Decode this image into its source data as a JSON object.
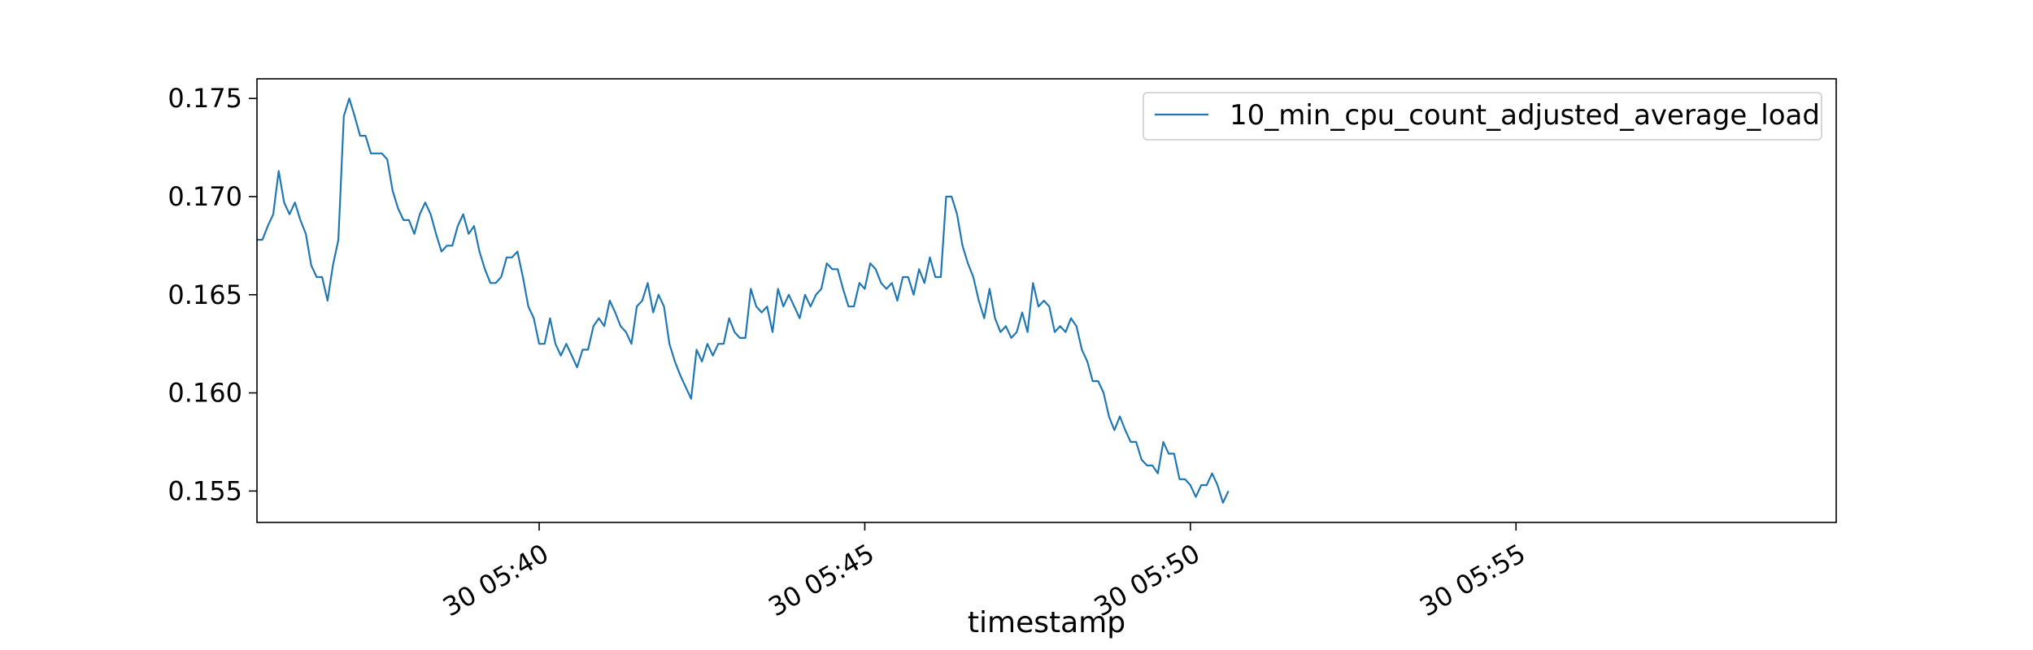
{
  "chart_data": {
    "type": "line",
    "title": "",
    "xlabel": "timestamp",
    "ylabel": "",
    "x_start": "30 05:35:40",
    "x_step_seconds": 5,
    "xlim": [
      "30 05:35:40",
      "30 05:59:55"
    ],
    "x_ticks": [
      "30 05:40",
      "30 05:45",
      "30 05:50",
      "30 05:55"
    ],
    "ylim": [
      0.1534,
      0.176
    ],
    "y_ticks": [
      0.155,
      0.16,
      0.165,
      0.17,
      0.175
    ],
    "y_tick_labels": [
      "0.155",
      "0.160",
      "0.165",
      "0.170",
      "0.175"
    ],
    "grid": false,
    "legend_position": "top-right",
    "series": [
      {
        "name": "10_min_cpu_count_adjusted_average_load",
        "color": "#1f77b4",
        "values": [
          0.1678,
          0.1678,
          0.1685,
          0.1691,
          0.1713,
          0.1697,
          0.1691,
          0.1697,
          0.1688,
          0.1681,
          0.1665,
          0.1659,
          0.1659,
          0.1647,
          0.1665,
          0.1678,
          0.1741,
          0.175,
          0.1741,
          0.1731,
          0.1731,
          0.1722,
          0.1722,
          0.1722,
          0.1719,
          0.1703,
          0.1694,
          0.1688,
          0.1688,
          0.1681,
          0.1691,
          0.1697,
          0.1691,
          0.1681,
          0.1672,
          0.1675,
          0.1675,
          0.1685,
          0.1691,
          0.1681,
          0.1685,
          0.1672,
          0.1663,
          0.1656,
          0.1656,
          0.1659,
          0.1669,
          0.1669,
          0.1672,
          0.1659,
          0.1644,
          0.1638,
          0.1625,
          0.1625,
          0.1638,
          0.1625,
          0.1619,
          0.1625,
          0.1619,
          0.1613,
          0.1622,
          0.1622,
          0.1634,
          0.1638,
          0.1634,
          0.1647,
          0.1641,
          0.1634,
          0.1631,
          0.1625,
          0.1644,
          0.1647,
          0.1656,
          0.1641,
          0.165,
          0.1644,
          0.1625,
          0.1616,
          0.1609,
          0.1603,
          0.1597,
          0.1622,
          0.1616,
          0.1625,
          0.1619,
          0.1625,
          0.1625,
          0.1638,
          0.1631,
          0.1628,
          0.1628,
          0.1653,
          0.1644,
          0.1641,
          0.1644,
          0.1631,
          0.1653,
          0.1644,
          0.165,
          0.1644,
          0.1638,
          0.165,
          0.1644,
          0.165,
          0.1653,
          0.1666,
          0.1663,
          0.1663,
          0.1653,
          0.1644,
          0.1644,
          0.1656,
          0.1653,
          0.1666,
          0.1663,
          0.1656,
          0.1653,
          0.1656,
          0.1647,
          0.1659,
          0.1659,
          0.165,
          0.1663,
          0.1656,
          0.1669,
          0.1659,
          0.1659,
          0.17,
          0.17,
          0.1691,
          0.1675,
          0.1666,
          0.1659,
          0.1647,
          0.1638,
          0.1653,
          0.1638,
          0.1631,
          0.1634,
          0.1628,
          0.1631,
          0.1641,
          0.1631,
          0.1656,
          0.1644,
          0.1647,
          0.1644,
          0.1631,
          0.1634,
          0.1631,
          0.1638,
          0.1634,
          0.1622,
          0.1616,
          0.1606,
          0.1606,
          0.16,
          0.1588,
          0.1581,
          0.1588,
          0.1581,
          0.1575,
          0.1575,
          0.1566,
          0.1563,
          0.1563,
          0.1559,
          0.1575,
          0.1569,
          0.1569,
          0.1556,
          0.1556,
          0.1553,
          0.1547,
          0.1553,
          0.1553,
          0.1559,
          0.1553,
          0.1544,
          0.155
        ]
      }
    ]
  }
}
